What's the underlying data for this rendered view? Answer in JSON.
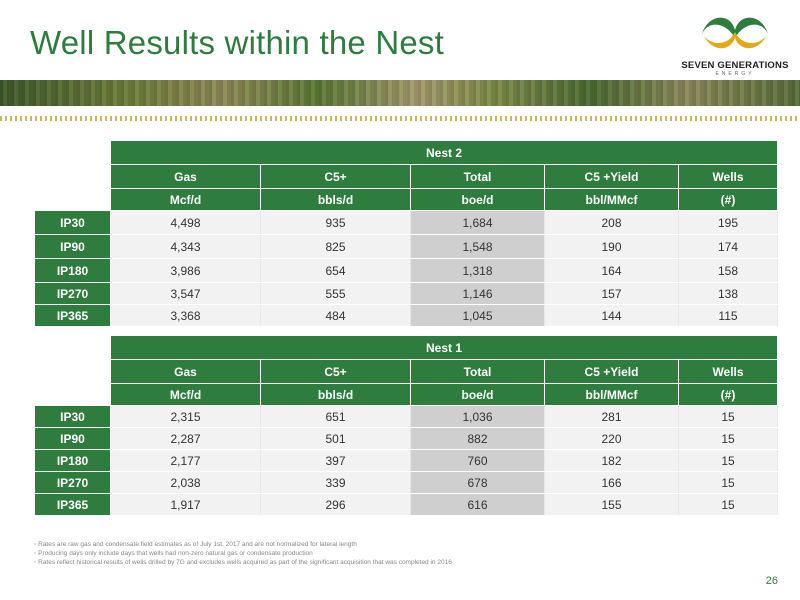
{
  "title": "Well Results within the Nest",
  "logo": {
    "name": "SEVEN GENERATIONS",
    "sub": "ENERGY"
  },
  "columns": [
    "Gas",
    "C5+",
    "Total",
    "C5 +Yield",
    "Wells"
  ],
  "units": [
    "Mcf/d",
    "bbls/d",
    "boe/d",
    "bbl/MMcf",
    "(#)"
  ],
  "tables": [
    {
      "name": "Nest 2",
      "rows": [
        {
          "label": "IP30",
          "values": [
            "4,498",
            "935",
            "1,684",
            "208",
            "195"
          ]
        },
        {
          "label": "IP90",
          "values": [
            "4,343",
            "825",
            "1,548",
            "190",
            "174"
          ]
        },
        {
          "label": "IP180",
          "values": [
            "3,986",
            "654",
            "1,318",
            "164",
            "158"
          ]
        },
        {
          "label": "IP270",
          "values": [
            "3,547",
            "555",
            "1,146",
            "157",
            "138"
          ]
        },
        {
          "label": "IP365",
          "values": [
            "3,368",
            "484",
            "1,045",
            "144",
            "115"
          ]
        }
      ]
    },
    {
      "name": "Nest 1",
      "rows": [
        {
          "label": "IP30",
          "values": [
            "2,315",
            "651",
            "1,036",
            "281",
            "15"
          ]
        },
        {
          "label": "IP90",
          "values": [
            "2,287",
            "501",
            "882",
            "220",
            "15"
          ]
        },
        {
          "label": "IP180",
          "values": [
            "2,177",
            "397",
            "760",
            "182",
            "15"
          ]
        },
        {
          "label": "IP270",
          "values": [
            "2,038",
            "339",
            "678",
            "166",
            "15"
          ]
        },
        {
          "label": "IP365",
          "values": [
            "1,917",
            "296",
            "616",
            "155",
            "15"
          ]
        }
      ]
    }
  ],
  "notes": [
    "Rates are raw gas and condensate field estimates as of July 1st, 2017 and are not normalized for lateral length",
    "Producing days only include days that wells had non-zero natural gas or condensate production",
    "Rates reflect historical results of wells drilled by 7G and excludes wells acquired as part of the significant acquisition that was completed in 2016"
  ],
  "page_number": "26",
  "colors": {
    "brand_green": "#2e7d3e",
    "cell_bg": "#f2f2f2",
    "total_bg": "#cfcfcf"
  }
}
